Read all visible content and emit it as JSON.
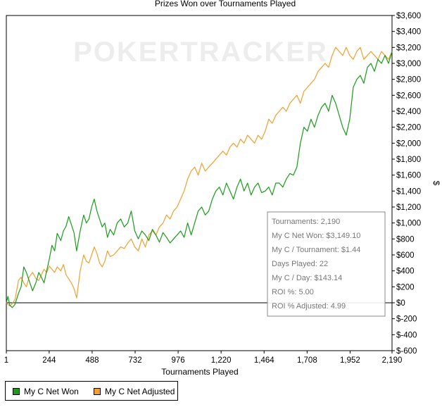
{
  "chart_data": {
    "type": "line",
    "title": "Prizes Won over Tournaments Played",
    "xlabel": "Tournaments Played",
    "ylabel": "$",
    "watermark": "POKERTRACKER",
    "xlim": [
      1,
      2190
    ],
    "ylim": [
      -600,
      3600
    ],
    "x_ticks": [
      {
        "value": 1,
        "label": "1"
      },
      {
        "value": 244,
        "label": "244"
      },
      {
        "value": 488,
        "label": "488"
      },
      {
        "value": 732,
        "label": "732"
      },
      {
        "value": 976,
        "label": "976"
      },
      {
        "value": 1220,
        "label": "1,220"
      },
      {
        "value": 1464,
        "label": "1,464"
      },
      {
        "value": 1708,
        "label": "1,708"
      },
      {
        "value": 1952,
        "label": "1,952"
      },
      {
        "value": 2190,
        "label": "2,190"
      }
    ],
    "y_ticks": [
      {
        "value": 3600,
        "label": "$3,600"
      },
      {
        "value": 3400,
        "label": "$3,400"
      },
      {
        "value": 3200,
        "label": "$3,200"
      },
      {
        "value": 3000,
        "label": "$3,000"
      },
      {
        "value": 2800,
        "label": "$2,800"
      },
      {
        "value": 2600,
        "label": "$2,600"
      },
      {
        "value": 2400,
        "label": "$2,400"
      },
      {
        "value": 2200,
        "label": "$2,200"
      },
      {
        "value": 2000,
        "label": "$2,000"
      },
      {
        "value": 1800,
        "label": "$1,800"
      },
      {
        "value": 1600,
        "label": "$1,600"
      },
      {
        "value": 1400,
        "label": "$1,400"
      },
      {
        "value": 1200,
        "label": "$1,200"
      },
      {
        "value": 1000,
        "label": "$1,000"
      },
      {
        "value": 800,
        "label": "$800"
      },
      {
        "value": 600,
        "label": "$600"
      },
      {
        "value": 400,
        "label": "$400"
      },
      {
        "value": 200,
        "label": "$200"
      },
      {
        "value": 0,
        "label": "$0"
      },
      {
        "value": -200,
        "label": "$-200"
      },
      {
        "value": -400,
        "label": "$-400"
      },
      {
        "value": -600,
        "label": "$-600"
      }
    ],
    "series": [
      {
        "name": "My C Net Won",
        "color": "#1a9c1a",
        "x": [
          1,
          10,
          20,
          35,
          50,
          70,
          85,
          100,
          115,
          130,
          150,
          170,
          185,
          200,
          215,
          230,
          245,
          260,
          275,
          290,
          310,
          325,
          340,
          355,
          370,
          385,
          400,
          420,
          440,
          455,
          470,
          485,
          500,
          515,
          530,
          545,
          560,
          575,
          590,
          610,
          630,
          650,
          670,
          690,
          710,
          730,
          750,
          770,
          790,
          810,
          830,
          850,
          870,
          890,
          910,
          930,
          950,
          970,
          990,
          1010,
          1030,
          1050,
          1070,
          1090,
          1110,
          1130,
          1150,
          1170,
          1190,
          1210,
          1230,
          1250,
          1270,
          1290,
          1310,
          1330,
          1350,
          1370,
          1390,
          1410,
          1430,
          1450,
          1470,
          1490,
          1510,
          1530,
          1550,
          1570,
          1590,
          1610,
          1630,
          1650,
          1670,
          1690,
          1710,
          1730,
          1750,
          1770,
          1790,
          1810,
          1830,
          1850,
          1870,
          1890,
          1910,
          1930,
          1950,
          1970,
          1990,
          2010,
          2030,
          2050,
          2070,
          2090,
          2110,
          2130,
          2150,
          2170,
          2190
        ],
        "y": [
          0,
          80,
          -30,
          -60,
          -20,
          120,
          200,
          450,
          380,
          280,
          150,
          260,
          380,
          320,
          250,
          400,
          550,
          720,
          650,
          870,
          780,
          900,
          960,
          1080,
          980,
          880,
          650,
          900,
          1100,
          1000,
          1050,
          1200,
          1300,
          1150,
          1050,
          950,
          1000,
          820,
          920,
          850,
          1000,
          1050,
          950,
          1000,
          1150,
          900,
          800,
          900,
          850,
          780,
          920,
          850,
          760,
          880,
          820,
          750,
          800,
          850,
          900,
          820,
          1000,
          850,
          1000,
          1150,
          1200,
          1100,
          1150,
          1300,
          1400,
          1450,
          1350,
          1500,
          1400,
          1300,
          1450,
          1550,
          1400,
          1500,
          1350,
          1450,
          1500,
          1380,
          1400,
          1450,
          1350,
          1500,
          1500,
          1450,
          1550,
          1620,
          1600,
          1700,
          2000,
          2200,
          2150,
          2300,
          2200,
          2350,
          2450,
          2500,
          2400,
          2600,
          2500,
          2350,
          2200,
          2100,
          2300,
          2700,
          2800,
          2850,
          2750,
          2950,
          3000,
          2900,
          3050,
          3000,
          3100,
          3000,
          3149
        ],
        "y_est": []
      },
      {
        "name": "My C Net Adjusted",
        "color": "#f0a030",
        "x": [
          1,
          10,
          20,
          35,
          50,
          70,
          85,
          100,
          115,
          130,
          150,
          170,
          185,
          200,
          215,
          230,
          245,
          260,
          275,
          290,
          310,
          325,
          340,
          355,
          370,
          385,
          400,
          420,
          440,
          455,
          470,
          485,
          500,
          515,
          530,
          545,
          560,
          575,
          590,
          610,
          630,
          650,
          670,
          690,
          710,
          730,
          750,
          770,
          790,
          810,
          830,
          850,
          870,
          890,
          910,
          930,
          950,
          970,
          990,
          1010,
          1030,
          1050,
          1070,
          1090,
          1110,
          1130,
          1150,
          1170,
          1190,
          1210,
          1230,
          1250,
          1270,
          1290,
          1310,
          1330,
          1350,
          1370,
          1390,
          1410,
          1430,
          1450,
          1470,
          1490,
          1510,
          1530,
          1550,
          1570,
          1590,
          1610,
          1630,
          1650,
          1670,
          1690,
          1710,
          1730,
          1750,
          1770,
          1790,
          1810,
          1830,
          1850,
          1870,
          1890,
          1910,
          1930,
          1950,
          1970,
          1990,
          2010,
          2030,
          2050,
          2070,
          2090,
          2110,
          2130,
          2150,
          2170,
          2190
        ],
        "y": [
          0,
          -20,
          -40,
          -10,
          40,
          280,
          320,
          250,
          200,
          320,
          380,
          300,
          280,
          350,
          420,
          380,
          460,
          420,
          380,
          450,
          400,
          480,
          350,
          300,
          250,
          180,
          60,
          400,
          600,
          520,
          500,
          600,
          700,
          620,
          500,
          450,
          520,
          650,
          580,
          600,
          650,
          700,
          680,
          750,
          800,
          700,
          650,
          800,
          700,
          850,
          900,
          850,
          950,
          1000,
          1100,
          1050,
          1150,
          1200,
          1300,
          1400,
          1550,
          1650,
          1700,
          1600,
          1750,
          1650,
          1700,
          1750,
          1800,
          1850,
          1900,
          1850,
          1950,
          2000,
          1950,
          2050,
          2000,
          2100,
          2050,
          2000,
          2100,
          2050,
          2150,
          2300,
          2250,
          2350,
          2400,
          2450,
          2400,
          2500,
          2550,
          2600,
          2500,
          2650,
          2700,
          2750,
          2800,
          2900,
          2950,
          3000,
          2950,
          3100,
          3200,
          3150,
          3100,
          3200,
          3100,
          3050,
          3150,
          3200,
          3050,
          3100,
          3150,
          3100,
          3050,
          3149,
          3100,
          3050,
          3149
        ],
        "y_est": []
      }
    ],
    "zero_line": 0,
    "legend_position": "bottom-left",
    "grid": false
  },
  "stats_box": {
    "lines": [
      "Tournaments: 2,190",
      "My C Net Won: $3,149.10",
      "My C / Tournament: $1.44",
      "Days Played: 22",
      "My C / Day: $143.14",
      "ROI %: 5.00",
      "ROI % Adjusted: 4.99"
    ]
  },
  "legend": {
    "items": [
      {
        "label": "My C Net Won",
        "color": "#1a9c1a"
      },
      {
        "label": "My C Net Adjusted",
        "color": "#f0a030"
      }
    ]
  }
}
